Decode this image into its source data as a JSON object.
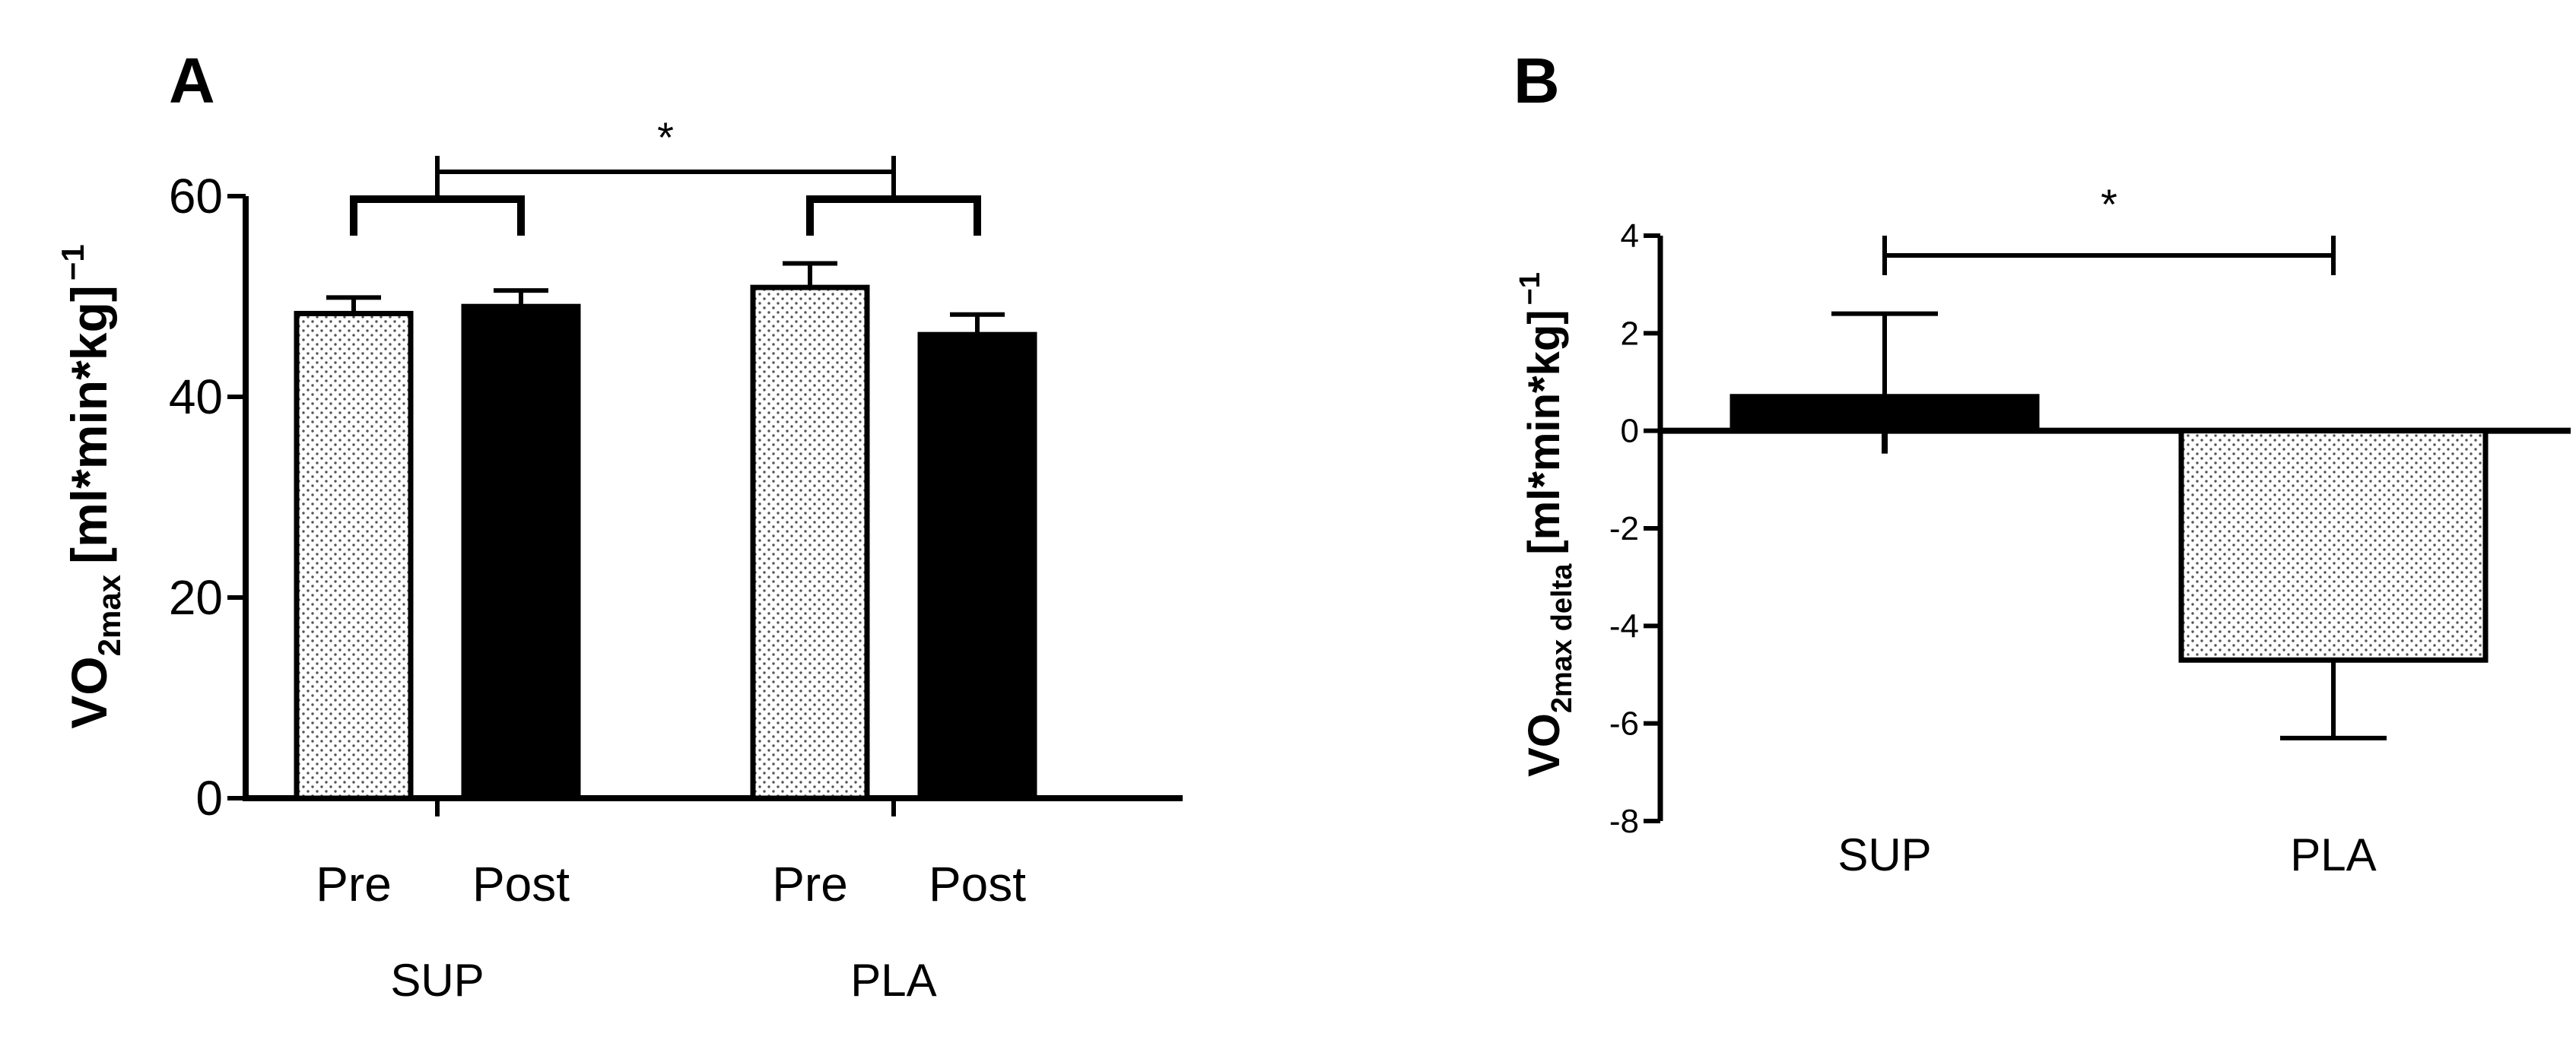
{
  "chart_data": [
    {
      "panel": "A",
      "type": "bar",
      "ylabel": "VO2max [ml*min*kg]-1",
      "ylabel_parts": {
        "main": "VO",
        "sub": "2max",
        "bracket": "[ml*min*kg]",
        "sup": "−1"
      },
      "ylim": [
        0,
        60
      ],
      "yticks": [
        0,
        20,
        40,
        60
      ],
      "ytick_labels": [
        "0",
        "20",
        "40",
        "60"
      ],
      "groups": [
        {
          "label": "SUP",
          "bars": [
            {
              "label": "Pre",
              "value": 48.3,
              "error": 1.6,
              "pattern": "dotted"
            },
            {
              "label": "Post",
              "value": 49.0,
              "error": 1.6,
              "pattern": "solid"
            }
          ]
        },
        {
          "label": "PLA",
          "bars": [
            {
              "label": "Pre",
              "value": 50.9,
              "error": 2.4,
              "pattern": "dotted"
            },
            {
              "label": "Post",
              "value": 46.2,
              "error": 2.0,
              "pattern": "solid"
            }
          ]
        }
      ],
      "significance": {
        "label": "*",
        "between": [
          "SUP",
          "PLA"
        ]
      }
    },
    {
      "panel": "B",
      "type": "bar",
      "ylabel": "VO2max delta [ml*min*kg]-1",
      "ylabel_parts": {
        "main": "VO",
        "sub": "2max delta",
        "bracket": "[ml*min*kg]",
        "sup": "−1"
      },
      "ylim": [
        -8,
        4
      ],
      "yticks": [
        -8,
        -6,
        -4,
        -2,
        0,
        2,
        4
      ],
      "ytick_labels": [
        "-8",
        "-6",
        "-4",
        "-2",
        "0",
        "2",
        "4"
      ],
      "categories": [
        "SUP",
        "PLA"
      ],
      "bars": [
        {
          "label": "SUP",
          "value": 0.7,
          "error": 1.7,
          "pattern": "solid"
        },
        {
          "label": "PLA",
          "value": -4.7,
          "error": 1.6,
          "pattern": "dotted"
        }
      ],
      "significance": {
        "label": "*",
        "between": [
          "SUP",
          "PLA"
        ]
      }
    }
  ],
  "panels": {
    "a_letter": "A",
    "b_letter": "B"
  },
  "colors": {
    "ink": "#000000",
    "dotted_fill": "#ffffff",
    "dot": "#555555"
  }
}
